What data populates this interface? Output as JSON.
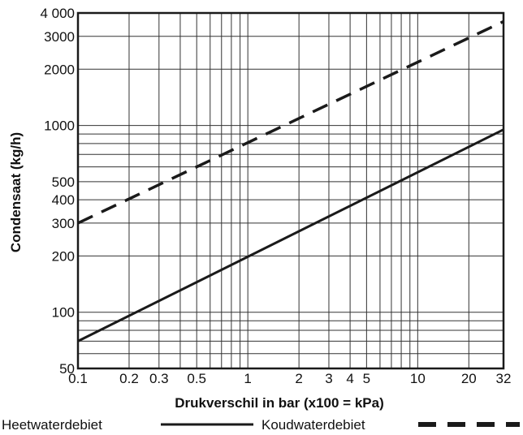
{
  "chart_data": {
    "type": "line",
    "xscale": "log",
    "yscale": "log",
    "xlim": [
      0.1,
      32
    ],
    "ylim": [
      50,
      4000
    ],
    "xlabel": "Drukverschil in bar (x100 = kPa)",
    "ylabel": "Condensaat (kg/h)",
    "x_ticks": [
      {
        "value": 0.1,
        "label": "0.1"
      },
      {
        "value": 0.2,
        "label": "0.2"
      },
      {
        "value": 0.3,
        "label": "0.3"
      },
      {
        "value": 0.5,
        "label": "0.5"
      },
      {
        "value": 1,
        "label": "1"
      },
      {
        "value": 2,
        "label": "2"
      },
      {
        "value": 3,
        "label": "3"
      },
      {
        "value": 4,
        "label": "4"
      },
      {
        "value": 5,
        "label": "5"
      },
      {
        "value": 10,
        "label": "10"
      },
      {
        "value": 20,
        "label": "20"
      },
      {
        "value": 32,
        "label": "32"
      }
    ],
    "y_ticks": [
      {
        "value": 50,
        "label": "50"
      },
      {
        "value": 100,
        "label": "100"
      },
      {
        "value": 200,
        "label": "200"
      },
      {
        "value": 300,
        "label": "300"
      },
      {
        "value": 400,
        "label": "400"
      },
      {
        "value": 500,
        "label": "500"
      },
      {
        "value": 1000,
        "label": "1000"
      },
      {
        "value": 2000,
        "label": "2000"
      },
      {
        "value": 3000,
        "label": "3000"
      },
      {
        "value": 4000,
        "label": "4 000"
      }
    ],
    "x_grid": [
      0.1,
      0.2,
      0.3,
      0.4,
      0.5,
      0.6,
      0.7,
      0.8,
      0.9,
      1,
      2,
      3,
      4,
      5,
      6,
      7,
      8,
      9,
      10,
      20,
      32
    ],
    "y_grid": [
      50,
      60,
      70,
      80,
      90,
      100,
      200,
      300,
      400,
      500,
      600,
      700,
      800,
      900,
      1000,
      2000,
      3000,
      4000
    ],
    "series": [
      {
        "name": "Heetwaterdebiet",
        "style": "solid",
        "color": "#1a1a1a",
        "x": [
          0.1,
          32
        ],
        "y": [
          70,
          950
        ]
      },
      {
        "name": "Koudwaterdebiet",
        "style": "dashed",
        "color": "#1a1a1a",
        "x": [
          0.1,
          32
        ],
        "y": [
          300,
          3600
        ]
      }
    ],
    "grid": true,
    "legend": "bottom"
  }
}
